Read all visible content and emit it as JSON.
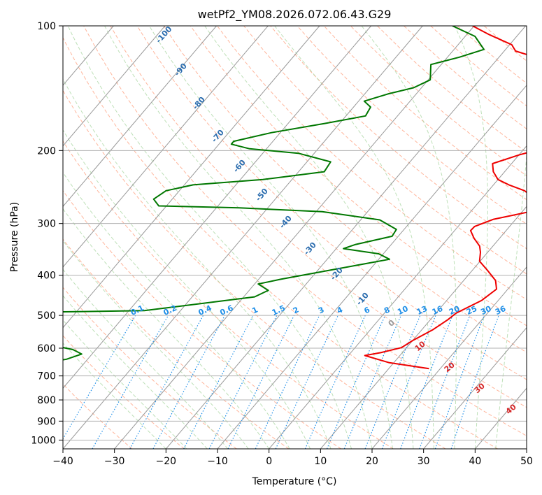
{
  "chart_data": {
    "type": "line",
    "title": "wetPf2_YM08.2026.072.06.43.G29",
    "xlabel": "Temperature (°C)",
    "ylabel": "Pressure (hPa)",
    "xlim": [
      -40,
      50
    ],
    "ylim": [
      1050,
      100
    ],
    "y_scale": "log",
    "x_ticks": [
      -40,
      -30,
      -20,
      -10,
      0,
      10,
      20,
      30,
      40,
      50
    ],
    "y_ticks": [
      100,
      200,
      300,
      400,
      500,
      600,
      700,
      800,
      900,
      1000
    ],
    "grid": true,
    "colors": {
      "temperature": "#ee0000",
      "dewpoint": "#007700",
      "isotherm": "#999999",
      "dry_adiabat": "#ff9c7a",
      "moist_adiabat": "#a8d6a0",
      "mixing_ratio": "#1f8fe8",
      "mixing_label": "#1f8fe8",
      "temp_label": "#2a6cae",
      "cold_label": "#d62728"
    },
    "mixing_ratio_labels": [
      "0.1",
      "0.2",
      "0.4",
      "0.6",
      "1",
      "1.5",
      "2",
      "3",
      "4",
      "6",
      "8",
      "10",
      "13",
      "16",
      "20",
      "25",
      "30",
      "36"
    ],
    "isotherm_labels_cold": [
      "-100",
      "-90",
      "-80",
      "-70",
      "-60",
      "-50",
      "-40",
      "-30",
      "-20",
      "-10"
    ],
    "isotherm_labels_warm": [
      "0",
      "10",
      "20",
      "30",
      "40"
    ],
    "series": [
      {
        "name": "temperature",
        "points": [
          [
            -30.3,
            100
          ],
          [
            -25.6,
            105
          ],
          [
            -19.6,
            111
          ],
          [
            -17.8,
            115
          ],
          [
            -13.0,
            119
          ],
          [
            -9.9,
            125
          ],
          [
            -4.8,
            130
          ],
          [
            -1.9,
            136
          ],
          [
            -0.4,
            143
          ],
          [
            5.5,
            147
          ],
          [
            3.0,
            150
          ],
          [
            3.2,
            157
          ],
          [
            4.2,
            165
          ],
          [
            8.7,
            171
          ],
          [
            9.7,
            178
          ],
          [
            8.8,
            186
          ],
          [
            5.0,
            195
          ],
          [
            0.0,
            205
          ],
          [
            -3.7,
            215
          ],
          [
            -2.2,
            225
          ],
          [
            0.0,
            235
          ],
          [
            3.0,
            242
          ],
          [
            7.0,
            250
          ],
          [
            9.6,
            259
          ],
          [
            12.1,
            268
          ],
          [
            12.0,
            280
          ],
          [
            5.7,
            293
          ],
          [
            3.2,
            305
          ],
          [
            3.1,
            312
          ],
          [
            5.1,
            326
          ],
          [
            7.4,
            340
          ],
          [
            8.6,
            352
          ],
          [
            9.9,
            370
          ],
          [
            12.9,
            389
          ],
          [
            16.2,
            412
          ],
          [
            17.8,
            432
          ],
          [
            16.8,
            460
          ],
          [
            13.9,
            494
          ],
          [
            13.4,
            512
          ],
          [
            12.1,
            542
          ],
          [
            10.0,
            575
          ],
          [
            9.0,
            598
          ],
          [
            5.8,
            615
          ],
          [
            3.2,
            625
          ],
          [
            9.0,
            650
          ],
          [
            17.8,
            672
          ]
        ]
      },
      {
        "name": "dewpoint",
        "points": [
          [
            -34.2,
            100
          ],
          [
            -28.1,
            106
          ],
          [
            -24.2,
            114
          ],
          [
            -27.7,
            119
          ],
          [
            -32.0,
            124
          ],
          [
            -29.6,
            135
          ],
          [
            -31.5,
            141
          ],
          [
            -35.5,
            146
          ],
          [
            -38.9,
            152
          ],
          [
            -36.7,
            157
          ],
          [
            -36.2,
            165
          ],
          [
            -42.8,
            172
          ],
          [
            -51.7,
            181
          ],
          [
            -57.6,
            190
          ],
          [
            -57.6,
            193
          ],
          [
            -53.3,
            198
          ],
          [
            -43.1,
            203
          ],
          [
            -35.4,
            213
          ],
          [
            -35.0,
            225
          ],
          [
            -45.6,
            235
          ],
          [
            -58.3,
            242
          ],
          [
            -62.6,
            250
          ],
          [
            -63.6,
            262
          ],
          [
            -61.5,
            272
          ],
          [
            -45.6,
            275
          ],
          [
            -28.8,
            281
          ],
          [
            -16.3,
            294
          ],
          [
            -11.5,
            310
          ],
          [
            -11.2,
            322
          ],
          [
            -16.9,
            337
          ],
          [
            -18.6,
            345
          ],
          [
            -10.9,
            355
          ],
          [
            -7.9,
            366
          ],
          [
            -17.3,
            388
          ],
          [
            -25.7,
            409
          ],
          [
            -29.3,
            420
          ],
          [
            -26.3,
            435
          ],
          [
            -27.9,
            451
          ],
          [
            -47.0,
            487
          ],
          [
            -90.4,
            496
          ],
          [
            -69.3,
            525
          ],
          [
            -62.3,
            540
          ],
          [
            -62.3,
            556
          ],
          [
            -67.9,
            576
          ],
          [
            -59.6,
            589
          ],
          [
            -54.4,
            605
          ],
          [
            -52.0,
            620
          ],
          [
            -54.1,
            638
          ],
          [
            -59.3,
            656
          ],
          [
            -59.5,
            664
          ]
        ]
      }
    ]
  }
}
